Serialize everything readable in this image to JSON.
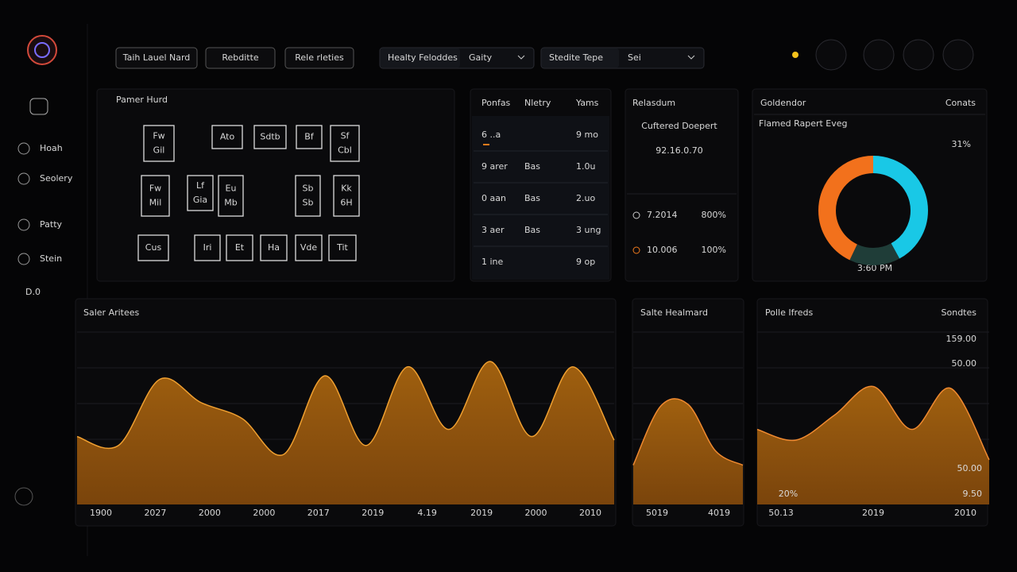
{
  "sidebar": {
    "items": [
      "Hoah",
      "Seolery",
      "Patty",
      "Stein",
      "D.0"
    ]
  },
  "toolbar": {
    "buttons": [
      "Taih Lauel Nard",
      "Rebditte",
      "Rele rleties"
    ],
    "selects": [
      {
        "label": "Healty Feloddes",
        "value": "Gaity"
      },
      {
        "label": "Stedite Tepe",
        "value": "Sei"
      }
    ]
  },
  "panel_grid": {
    "title": "Pamer Hurd",
    "cells": [
      [
        "Fw",
        "Gil"
      ],
      [
        "Ato"
      ],
      [
        "Sdtb"
      ],
      [
        "Bf"
      ],
      [
        "Sf",
        "Cbl"
      ],
      [
        "Fw",
        "Mil"
      ],
      [
        "Lf",
        "Gia"
      ],
      [
        "Eu",
        "Mb"
      ],
      [
        "Sb",
        "Sb"
      ],
      [
        "Kk",
        "6H"
      ],
      [
        "Cus"
      ],
      [
        "Iri"
      ],
      [
        "Et"
      ],
      [
        "Ha"
      ],
      [
        "Vde"
      ],
      [
        "Tit"
      ]
    ]
  },
  "table": {
    "headers": [
      "Ponfas",
      "Nletry",
      "Yams"
    ],
    "rows": [
      [
        "6 ..a",
        "",
        "9 mo"
      ],
      [
        "9 arer",
        "Bas",
        "1.0u"
      ],
      [
        "0 aan",
        "Bas",
        "2.uo"
      ],
      [
        "3 aer",
        "Bas",
        "3 ung"
      ],
      [
        "1 ine",
        "",
        "9 op"
      ]
    ]
  },
  "stat": {
    "title": "Relasdum",
    "subtitle": "Cuftered Doepert",
    "value": "92.16.0.70",
    "rows": [
      [
        "7.2014",
        "800%"
      ],
      [
        "10.006",
        "100%"
      ]
    ]
  },
  "chart_data": [
    {
      "type": "donut",
      "title": "Goldendor",
      "corner_label": "Conats",
      "subtitle": "Flamed Rapert Eveg",
      "annotation": "31%",
      "footer": "3:60 PM",
      "values": [
        42,
        15,
        43
      ],
      "colors": [
        "#19c8e6",
        "#1f3d38",
        "#f2711c"
      ]
    },
    {
      "type": "area",
      "title": "Saler Aritees",
      "x_labels": [
        "1900",
        "2027",
        "2000",
        "2000",
        "2017",
        "2019",
        "4.19",
        "2019",
        "2000",
        "2010"
      ],
      "values": [
        38,
        33,
        70,
        57,
        48,
        28,
        72,
        33,
        77,
        42,
        80,
        38,
        77,
        36
      ],
      "ylim": [
        0,
        100
      ],
      "color": "#f0a030"
    },
    {
      "type": "area",
      "title": "Salte Healmard",
      "x_labels": [
        "5019",
        "4019"
      ],
      "values": [
        22,
        55,
        56,
        30,
        22
      ],
      "ylim": [
        0,
        100
      ],
      "color": "#f08a30"
    },
    {
      "type": "area",
      "title": "Polle Ifreds",
      "corner_label": "Sondtes",
      "annotations": [
        "159.00",
        "50.00",
        "50.00",
        "20%",
        "9.50"
      ],
      "x_labels": [
        "50.13",
        "2019",
        "2010"
      ],
      "values": [
        42,
        36,
        50,
        66,
        42,
        65,
        25
      ],
      "ylim": [
        0,
        100
      ],
      "color": "#f08a30"
    }
  ]
}
